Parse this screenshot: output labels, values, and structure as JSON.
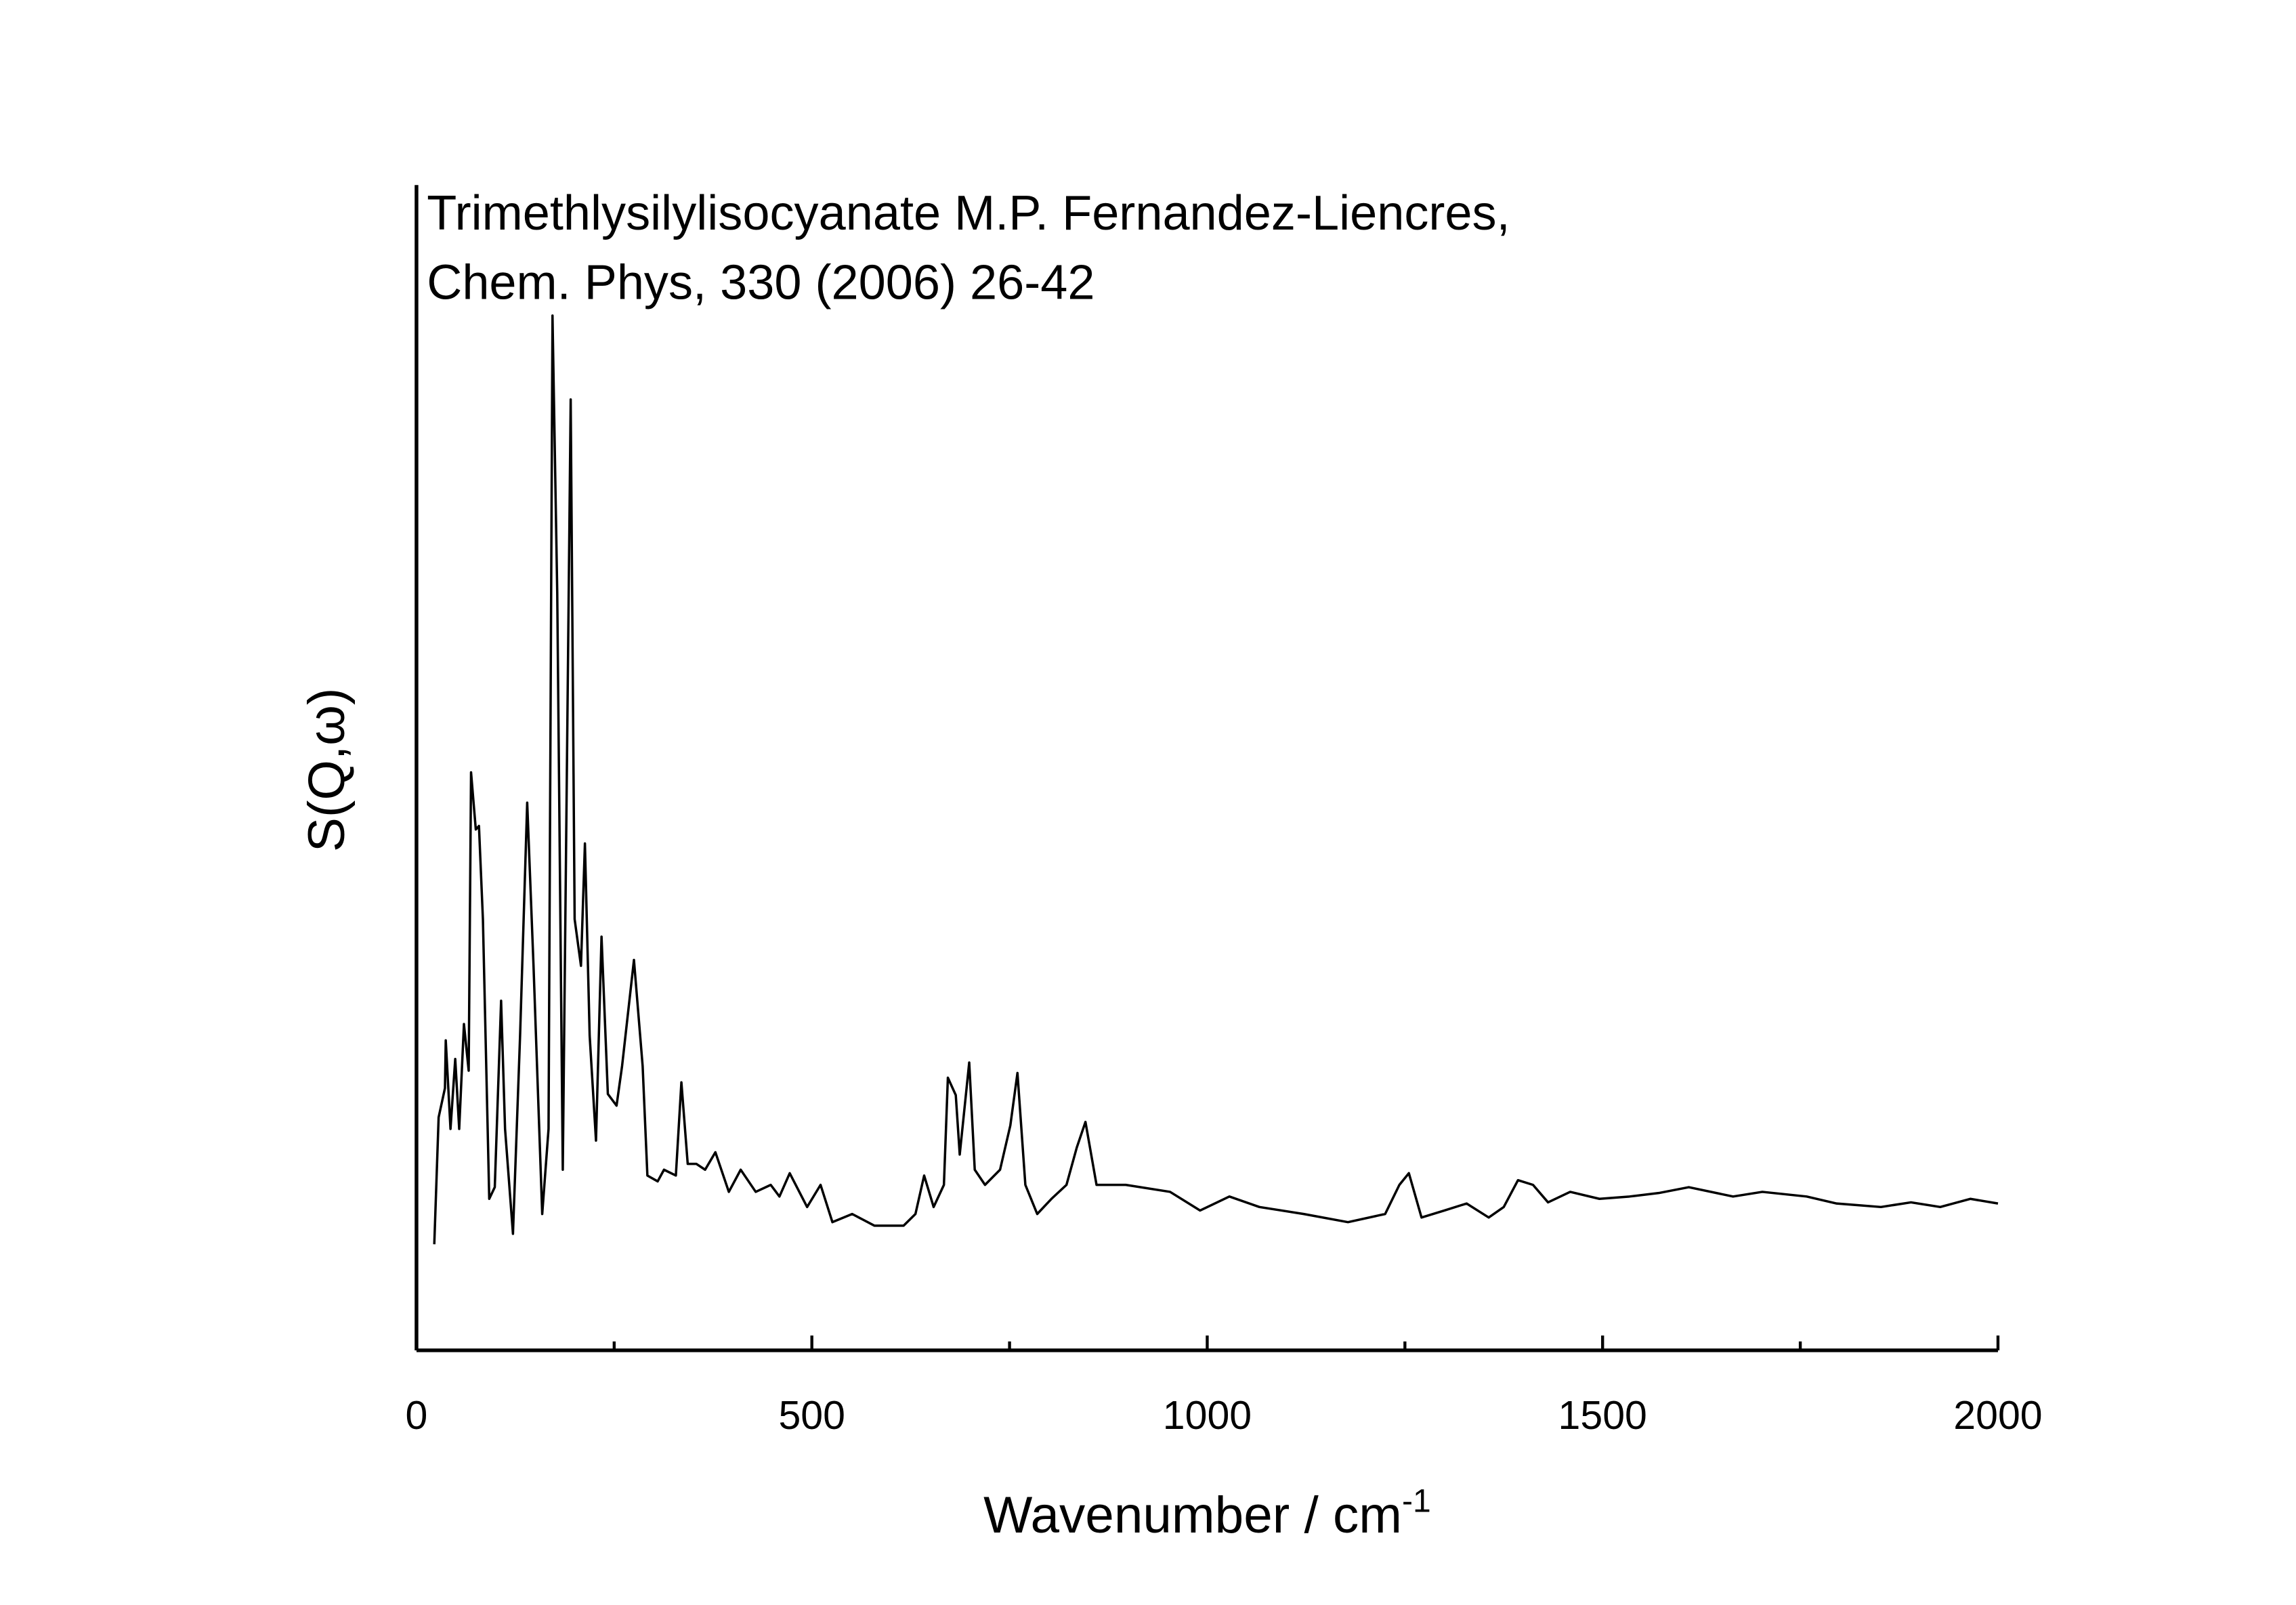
{
  "chart_data": {
    "type": "line",
    "title": [
      "Trimethlysilylisocyanate M.P. Fernandez-Liencres,",
      "Chem. Phys, 330 (2006) 26-42"
    ],
    "xlabel": "Wavenumber / cm",
    "xlabel_superscript": "-1",
    "ylabel": "S(Q,ω)",
    "xlim": [
      0,
      2000
    ],
    "xticks": [
      0,
      500,
      1000,
      1500,
      2000
    ],
    "xminorticks": [
      250,
      750,
      1250,
      1750
    ],
    "ylim": [
      0,
      100
    ],
    "color": "#000000",
    "x": [
      22.5,
      28,
      36,
      37,
      43,
      49,
      54,
      60,
      66,
      69,
      75,
      79,
      84,
      92,
      99,
      107,
      112,
      122,
      131,
      140,
      148,
      159,
      167,
      172,
      178,
      185,
      195,
      200,
      208,
      213,
      219,
      227,
      234,
      242,
      253,
      260,
      275,
      286,
      292,
      305,
      313,
      328,
      335,
      343,
      354,
      365,
      378,
      395,
      410,
      429,
      448,
      459,
      472,
      494,
      511,
      526,
      551,
      579,
      616,
      631,
      642,
      654,
      667,
      672,
      682,
      687,
      699,
      706,
      719,
      738,
      751,
      760,
      770,
      785,
      803,
      822,
      835,
      846,
      860,
      897,
      953,
      991,
      1028,
      1066,
      1122,
      1178,
      1225,
      1243,
      1255,
      1271,
      1300,
      1328,
      1356,
      1375,
      1393,
      1412,
      1431,
      1459,
      1496,
      1534,
      1571,
      1609,
      1665,
      1702,
      1758,
      1796,
      1852,
      1890,
      1927,
      1965,
      2000
    ],
    "series": [
      {
        "name": "S(Q,ω)",
        "color": "#000000",
        "values": [
          9.1,
          20,
          22.5,
          26.6,
          19,
          25,
          19,
          28,
          24,
          49.6,
          44.7,
          45,
          37,
          13,
          14,
          30,
          19,
          10,
          27,
          47,
          33,
          11.7,
          19,
          88.8,
          65,
          15.5,
          81.6,
          37,
          33,
          43.5,
          27,
          18,
          35.5,
          22,
          21,
          24.4,
          33.5,
          24.4,
          15,
          14.5,
          15.5,
          15,
          23,
          16,
          16,
          15.5,
          17,
          13.6,
          15.5,
          13.6,
          14.2,
          13.2,
          15.2,
          12.3,
          14.2,
          11,
          11.7,
          10.7,
          10.7,
          11.7,
          15,
          12.3,
          14.2,
          23.4,
          21.9,
          16.8,
          24.7,
          15.5,
          14.2,
          15.5,
          19.3,
          23.8,
          14.2,
          11.7,
          13,
          14.2,
          17.4,
          19.6,
          14.2,
          14.2,
          13.6,
          12,
          13.2,
          12.3,
          11.7,
          11,
          11.7,
          14.2,
          15.2,
          11.4,
          12,
          12.6,
          11.4,
          12.3,
          14.6,
          14.2,
          12.7,
          13.6,
          13,
          13.2,
          13.5,
          14,
          13.2,
          13.6,
          13.2,
          12.6,
          12.3,
          12.7,
          12.3,
          13,
          12.6
        ]
      }
    ]
  }
}
